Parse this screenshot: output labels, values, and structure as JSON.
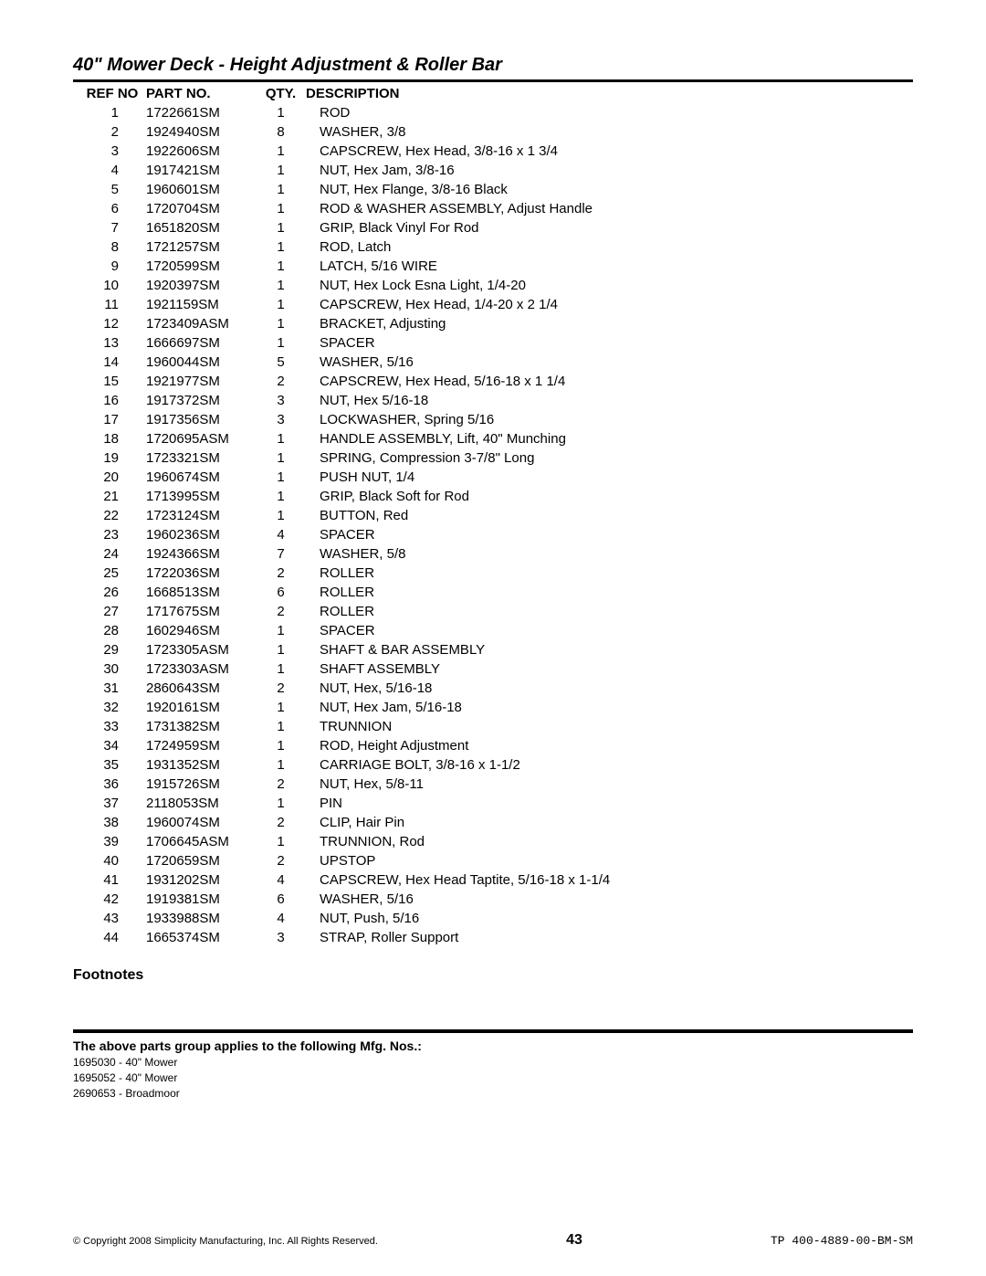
{
  "title": "40\" Mower Deck - Height Adjustment & Roller Bar",
  "headers": {
    "ref": "REF NO",
    "part": "PART NO.",
    "qty": "QTY.",
    "desc": "DESCRIPTION"
  },
  "rows": [
    {
      "ref": "1",
      "part": "1722661SM",
      "qty": "1",
      "desc": "ROD"
    },
    {
      "ref": "2",
      "part": "1924940SM",
      "qty": "8",
      "desc": "WASHER, 3/8"
    },
    {
      "ref": "3",
      "part": "1922606SM",
      "qty": "1",
      "desc": "CAPSCREW, Hex Head, 3/8-16 x 1 3/4"
    },
    {
      "ref": "4",
      "part": "1917421SM",
      "qty": "1",
      "desc": "NUT, Hex Jam, 3/8-16"
    },
    {
      "ref": "5",
      "part": "1960601SM",
      "qty": "1",
      "desc": "NUT, Hex Flange, 3/8-16 Black"
    },
    {
      "ref": "6",
      "part": "1720704SM",
      "qty": "1",
      "desc": "ROD & WASHER ASSEMBLY, Adjust Handle"
    },
    {
      "ref": "7",
      "part": "1651820SM",
      "qty": "1",
      "desc": "GRIP, Black Vinyl For Rod"
    },
    {
      "ref": "8",
      "part": "1721257SM",
      "qty": "1",
      "desc": "ROD, Latch"
    },
    {
      "ref": "9",
      "part": "1720599SM",
      "qty": "1",
      "desc": "LATCH, 5/16 WIRE"
    },
    {
      "ref": "10",
      "part": "1920397SM",
      "qty": "1",
      "desc": "NUT, Hex Lock Esna Light, 1/4-20"
    },
    {
      "ref": "11",
      "part": "1921159SM",
      "qty": "1",
      "desc": "CAPSCREW, Hex Head, 1/4-20 x 2 1/4"
    },
    {
      "ref": "12",
      "part": "1723409ASM",
      "qty": "1",
      "desc": "BRACKET, Adjusting"
    },
    {
      "ref": "13",
      "part": "1666697SM",
      "qty": "1",
      "desc": "SPACER"
    },
    {
      "ref": "14",
      "part": "1960044SM",
      "qty": "5",
      "desc": "WASHER, 5/16"
    },
    {
      "ref": "15",
      "part": "1921977SM",
      "qty": "2",
      "desc": "CAPSCREW, Hex Head, 5/16-18 x 1 1/4"
    },
    {
      "ref": "16",
      "part": "1917372SM",
      "qty": "3",
      "desc": "NUT, Hex 5/16-18"
    },
    {
      "ref": "17",
      "part": "1917356SM",
      "qty": "3",
      "desc": "LOCKWASHER, Spring 5/16"
    },
    {
      "ref": "18",
      "part": "1720695ASM",
      "qty": "1",
      "desc": "HANDLE ASSEMBLY, Lift, 40\" Munching"
    },
    {
      "ref": "19",
      "part": "1723321SM",
      "qty": "1",
      "desc": "SPRING, Compression 3-7/8\" Long"
    },
    {
      "ref": "20",
      "part": "1960674SM",
      "qty": "1",
      "desc": "PUSH NUT, 1/4"
    },
    {
      "ref": "21",
      "part": "1713995SM",
      "qty": "1",
      "desc": "GRIP, Black Soft for Rod"
    },
    {
      "ref": "22",
      "part": "1723124SM",
      "qty": "1",
      "desc": "BUTTON, Red"
    },
    {
      "ref": "23",
      "part": "1960236SM",
      "qty": "4",
      "desc": "SPACER"
    },
    {
      "ref": "24",
      "part": "1924366SM",
      "qty": "7",
      "desc": "WASHER, 5/8"
    },
    {
      "ref": "25",
      "part": "1722036SM",
      "qty": "2",
      "desc": "ROLLER"
    },
    {
      "ref": "26",
      "part": "1668513SM",
      "qty": "6",
      "desc": "ROLLER"
    },
    {
      "ref": "27",
      "part": "1717675SM",
      "qty": "2",
      "desc": "ROLLER"
    },
    {
      "ref": "28",
      "part": "1602946SM",
      "qty": "1",
      "desc": "SPACER"
    },
    {
      "ref": "29",
      "part": "1723305ASM",
      "qty": "1",
      "desc": "SHAFT & BAR ASSEMBLY"
    },
    {
      "ref": "30",
      "part": "1723303ASM",
      "qty": "1",
      "desc": "SHAFT ASSEMBLY"
    },
    {
      "ref": "31",
      "part": "2860643SM",
      "qty": "2",
      "desc": "NUT, Hex, 5/16-18"
    },
    {
      "ref": "32",
      "part": "1920161SM",
      "qty": "1",
      "desc": "NUT, Hex Jam, 5/16-18"
    },
    {
      "ref": "33",
      "part": "1731382SM",
      "qty": "1",
      "desc": "TRUNNION"
    },
    {
      "ref": "34",
      "part": "1724959SM",
      "qty": "1",
      "desc": "ROD, Height Adjustment"
    },
    {
      "ref": "35",
      "part": "1931352SM",
      "qty": "1",
      "desc": "CARRIAGE BOLT, 3/8-16 x 1-1/2"
    },
    {
      "ref": "36",
      "part": "1915726SM",
      "qty": "2",
      "desc": "NUT, Hex, 5/8-11"
    },
    {
      "ref": "37",
      "part": "2118053SM",
      "qty": "1",
      "desc": "PIN"
    },
    {
      "ref": "38",
      "part": "1960074SM",
      "qty": "2",
      "desc": "CLIP, Hair Pin"
    },
    {
      "ref": "39",
      "part": "1706645ASM",
      "qty": "1",
      "desc": "TRUNNION, Rod"
    },
    {
      "ref": "40",
      "part": "1720659SM",
      "qty": "2",
      "desc": "UPSTOP"
    },
    {
      "ref": "41",
      "part": "1931202SM",
      "qty": "4",
      "desc": "CAPSCREW, Hex Head Taptite, 5/16-18 x 1-1/4"
    },
    {
      "ref": "42",
      "part": "1919381SM",
      "qty": "6",
      "desc": "WASHER, 5/16"
    },
    {
      "ref": "43",
      "part": "1933988SM",
      "qty": "4",
      "desc": "NUT, Push, 5/16"
    },
    {
      "ref": "44",
      "part": "1665374SM",
      "qty": "3",
      "desc": "STRAP, Roller Support"
    }
  ],
  "footnotes_label": "Footnotes",
  "mfg_heading": "The above parts group applies to the following Mfg. Nos.:",
  "mfg_list": [
    "1695030 - 40\" Mower",
    "1695052 - 40\" Mower",
    "2690653 - Broadmoor"
  ],
  "footer": {
    "copyright": "© Copyright 2008 Simplicity Manufacturing, Inc. All Rights Reserved.",
    "page": "43",
    "doc": "TP 400-4889-00-BM-SM"
  }
}
